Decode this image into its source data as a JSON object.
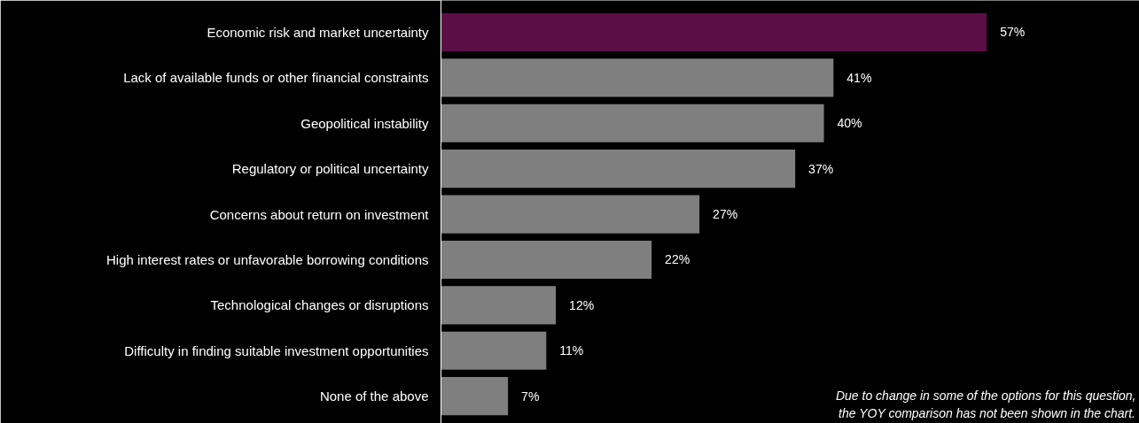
{
  "chart_data": {
    "type": "bar",
    "orientation": "horizontal",
    "categories": [
      "Economic risk and market uncertainty",
      "Lack of available funds or other financial constraints",
      "Geopolitical instability",
      "Regulatory or political uncertainty",
      "Concerns about return on investment",
      "High interest rates or unfavorable borrowing conditions",
      "Technological changes or disruptions",
      "Difficulty in finding suitable investment opportunities",
      "None of the above"
    ],
    "values": [
      57,
      41,
      40,
      37,
      27,
      22,
      12,
      11,
      7
    ],
    "value_labels": [
      "57%",
      "41%",
      "40%",
      "37%",
      "27%",
      "22%",
      "12%",
      "11%",
      "7%"
    ],
    "colors": [
      "#5a0e45",
      "#7f7f7f",
      "#7f7f7f",
      "#7f7f7f",
      "#7f7f7f",
      "#7f7f7f",
      "#7f7f7f",
      "#7f7f7f",
      "#7f7f7f"
    ],
    "annotations": [
      "Due to change in some of the options for this question, the YOY comparison has not been shown in the chart."
    ],
    "grid": false
  }
}
